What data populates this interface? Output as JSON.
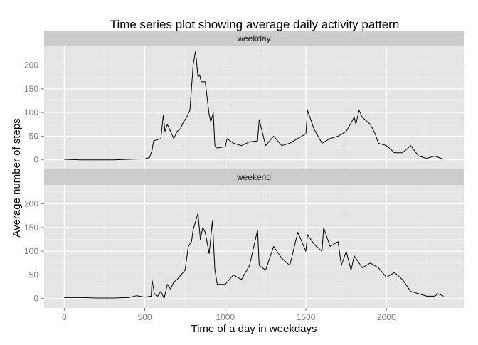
{
  "chart_data": {
    "type": "line",
    "title": "Time series plot showing average daily activity pattern",
    "xlabel": "Time of a day in weekdays",
    "ylabel": "Average number of steps",
    "xlim": [
      -125,
      2480
    ],
    "ylim": [
      -20,
      240
    ],
    "x_ticks": [
      0,
      500,
      1000,
      1500,
      2000
    ],
    "y_ticks": [
      0,
      50,
      100,
      150,
      200
    ],
    "grid": true,
    "legend": "none",
    "colors": {
      "panel_bg": "#e5e5e5",
      "grid_major": "#ffffff",
      "grid_minor": "#f2f2f2",
      "strip_bg": "#cccccc",
      "line": "#000000",
      "tick_text": "#7f7f7f"
    },
    "panels": [
      {
        "label": "weekday",
        "x": [
          0,
          100,
          200,
          300,
          400,
          500,
          530,
          545,
          555,
          600,
          615,
          625,
          640,
          660,
          680,
          700,
          720,
          740,
          760,
          780,
          800,
          815,
          830,
          840,
          850,
          860,
          875,
          900,
          910,
          925,
          935,
          950,
          1000,
          1010,
          1050,
          1100,
          1150,
          1200,
          1210,
          1250,
          1300,
          1350,
          1400,
          1500,
          1510,
          1550,
          1600,
          1650,
          1700,
          1750,
          1800,
          1810,
          1830,
          1850,
          1900,
          1930,
          1950,
          2000,
          2050,
          2100,
          2150,
          2200,
          2250,
          2300,
          2355
        ],
        "y": [
          1,
          0,
          0,
          0,
          1,
          2,
          5,
          20,
          40,
          45,
          95,
          60,
          75,
          60,
          45,
          60,
          65,
          80,
          90,
          105,
          200,
          230,
          175,
          180,
          165,
          165,
          165,
          95,
          80,
          100,
          30,
          25,
          28,
          45,
          35,
          30,
          38,
          40,
          85,
          30,
          50,
          30,
          35,
          55,
          105,
          65,
          35,
          45,
          50,
          60,
          90,
          75,
          105,
          90,
          75,
          55,
          35,
          30,
          15,
          15,
          30,
          8,
          3,
          8,
          1
        ]
      },
      {
        "label": "weekend",
        "x": [
          0,
          100,
          200,
          300,
          400,
          450,
          500,
          540,
          545,
          560,
          580,
          600,
          620,
          640,
          660,
          680,
          700,
          750,
          770,
          790,
          800,
          830,
          845,
          860,
          875,
          900,
          920,
          935,
          950,
          1000,
          1050,
          1100,
          1150,
          1200,
          1210,
          1250,
          1300,
          1350,
          1400,
          1450,
          1500,
          1510,
          1550,
          1600,
          1610,
          1650,
          1700,
          1720,
          1750,
          1780,
          1800,
          1850,
          1900,
          1950,
          2000,
          2050,
          2100,
          2150,
          2200,
          2250,
          2300,
          2320,
          2355
        ],
        "y": [
          2,
          2,
          1,
          1,
          2,
          6,
          3,
          5,
          40,
          10,
          5,
          15,
          0,
          30,
          20,
          35,
          40,
          60,
          110,
          120,
          145,
          180,
          125,
          150,
          140,
          95,
          165,
          60,
          30,
          30,
          50,
          40,
          70,
          145,
          70,
          60,
          110,
          85,
          70,
          140,
          100,
          135,
          115,
          100,
          150,
          110,
          120,
          70,
          100,
          60,
          90,
          65,
          75,
          65,
          45,
          55,
          40,
          15,
          10,
          5,
          5,
          10,
          5
        ]
      }
    ]
  }
}
